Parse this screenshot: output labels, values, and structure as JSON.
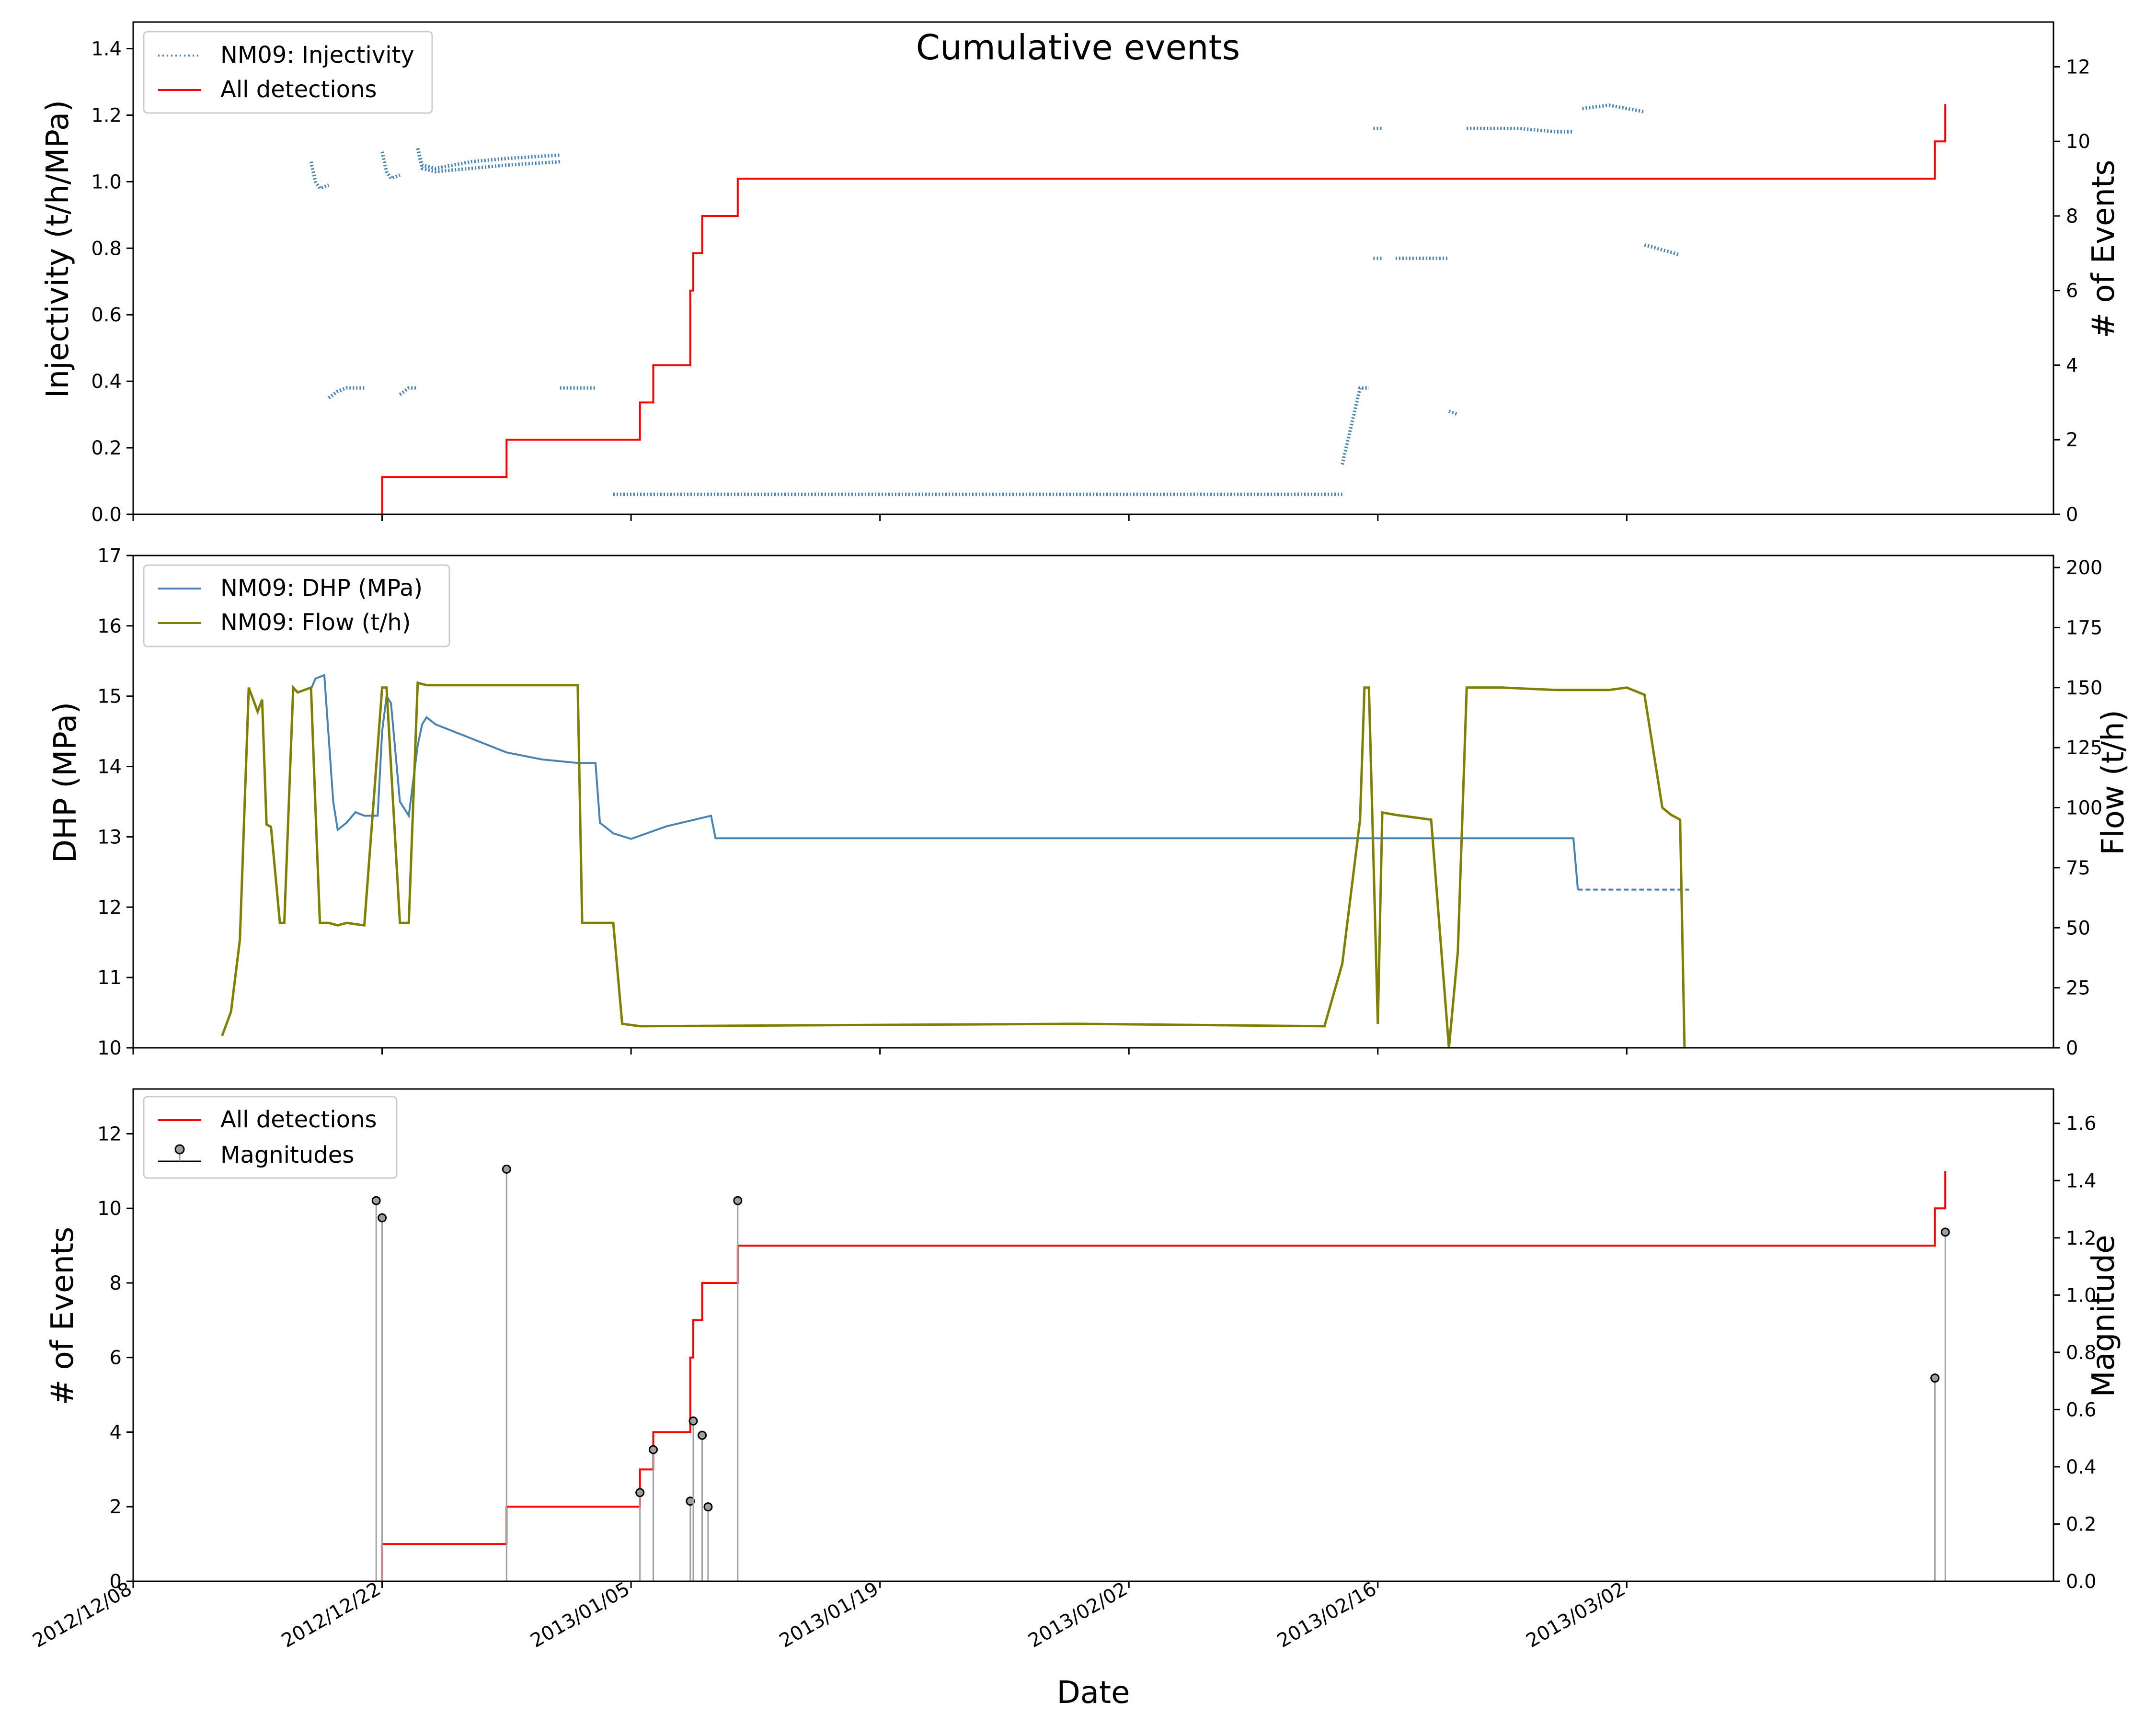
{
  "figure": {
    "title": "Cumulative events",
    "xlabel": "Date",
    "x_tick_labels": [
      "2012/12/08",
      "2012/12/22",
      "2013/01/05",
      "2013/01/19",
      "2013/02/02",
      "2013/02/16",
      "2013/03/02"
    ]
  },
  "colors": {
    "injectivity": "#4682b4",
    "detections": "#ff0000",
    "dhp": "#4682b4",
    "flow": "#808000",
    "stem": "#a0a0a0"
  },
  "chart_data": [
    {
      "type": "scatter",
      "xlabel": "",
      "ylabel": "Injectivity (t/h/MPa)",
      "ylim": [
        0,
        1.48
      ],
      "y_ticks": [
        "0.0",
        "0.2",
        "0.4",
        "0.6",
        "0.8",
        "1.0",
        "1.2",
        "1.4"
      ],
      "y2label": "# of Events",
      "y2lim": [
        0,
        13.2
      ],
      "y2_ticks": [
        "0",
        "2",
        "4",
        "6",
        "8",
        "10",
        "12"
      ],
      "legend_position": "top-left",
      "series": [
        {
          "name": "NM09: Injectivity",
          "axis": "left",
          "style": "dots",
          "segments": [
            [
              [
                "2012-12-18 00:00",
                1.06
              ],
              [
                "2012-12-18 06:00",
                1.0
              ],
              [
                "2012-12-18 12:00",
                0.98
              ],
              [
                "2012-12-19 00:00",
                0.99
              ]
            ],
            [
              [
                "2012-12-19 00:00",
                0.35
              ],
              [
                "2012-12-19 12:00",
                0.37
              ],
              [
                "2012-12-20 00:00",
                0.38
              ],
              [
                "2012-12-21 00:00",
                0.38
              ]
            ],
            [
              [
                "2012-12-22 00:00",
                1.09
              ],
              [
                "2012-12-22 06:00",
                1.03
              ],
              [
                "2012-12-22 12:00",
                1.01
              ],
              [
                "2012-12-23 00:00",
                1.02
              ]
            ],
            [
              [
                "2012-12-23 00:00",
                0.36
              ],
              [
                "2012-12-23 12:00",
                0.38
              ],
              [
                "2012-12-24 00:00",
                0.38
              ]
            ],
            [
              [
                "2012-12-24 00:00",
                1.1
              ],
              [
                "2012-12-24 06:00",
                1.04
              ],
              [
                "2012-12-25 00:00",
                1.03
              ],
              [
                "2012-12-27 00:00",
                1.04
              ],
              [
                "2012-12-29 00:00",
                1.05
              ],
              [
                "2013-01-01 00:00",
                1.06
              ]
            ],
            [
              [
                "2012-12-24 00:00",
                1.1
              ],
              [
                "2012-12-24 06:00",
                1.05
              ],
              [
                "2012-12-25 00:00",
                1.04
              ],
              [
                "2012-12-27 00:00",
                1.06
              ],
              [
                "2012-12-29 00:00",
                1.07
              ],
              [
                "2013-01-01 00:00",
                1.08
              ]
            ],
            [
              [
                "2013-01-01 00:00",
                0.38
              ],
              [
                "2013-01-03 00:00",
                0.38
              ]
            ],
            [
              [
                "2013-01-04 00:00",
                0.06
              ],
              [
                "2013-02-14 00:00",
                0.06
              ]
            ],
            [
              [
                "2013-02-14 00:00",
                0.15
              ],
              [
                "2013-02-15 00:00",
                0.38
              ],
              [
                "2013-02-15 12:00",
                0.38
              ]
            ],
            [
              [
                "2013-02-15 18:00",
                0.77
              ],
              [
                "2013-02-16 06:00",
                0.77
              ]
            ],
            [
              [
                "2013-02-15 18:00",
                1.16
              ],
              [
                "2013-02-16 06:00",
                1.16
              ]
            ],
            [
              [
                "2013-02-17 00:00",
                0.77
              ],
              [
                "2013-02-20 00:00",
                0.77
              ]
            ],
            [
              [
                "2013-02-20 00:00",
                0.31
              ],
              [
                "2013-02-20 12:00",
                0.3
              ]
            ],
            [
              [
                "2013-02-21 00:00",
                1.16
              ],
              [
                "2013-02-24 00:00",
                1.16
              ],
              [
                "2013-02-26 00:00",
                1.15
              ],
              [
                "2013-02-27 00:00",
                1.15
              ]
            ],
            [
              [
                "2013-02-27 12:00",
                1.22
              ],
              [
                "2013-03-01 00:00",
                1.23
              ],
              [
                "2013-03-03 00:00",
                1.21
              ]
            ],
            [
              [
                "2013-03-03 00:00",
                0.81
              ],
              [
                "2013-03-05 00:00",
                0.78
              ]
            ]
          ]
        },
        {
          "name": "All detections",
          "axis": "right",
          "style": "step",
          "x": [
            "2012-12-22 00:00",
            "2012-12-29 00:00",
            "2013-01-05 12:00",
            "2013-01-06 06:00",
            "2013-01-08 08:00",
            "2013-01-08 12:00",
            "2013-01-09 00:00",
            "2013-01-11 00:00",
            "2013-03-19 08:00",
            "2013-03-19 22:00"
          ],
          "y": [
            1,
            2,
            3,
            4,
            6,
            7,
            8,
            9,
            10,
            11
          ]
        }
      ]
    },
    {
      "type": "line",
      "xlabel": "",
      "ylabel": "DHP (MPa)",
      "ylim": [
        10,
        17
      ],
      "y_ticks": [
        "10",
        "11",
        "12",
        "13",
        "14",
        "15",
        "16",
        "17"
      ],
      "y2label": "Flow (t/h)",
      "y2lim": [
        0,
        205
      ],
      "y2_ticks": [
        "0",
        "25",
        "50",
        "75",
        "100",
        "125",
        "150",
        "175",
        "200"
      ],
      "legend_position": "top-left",
      "series": [
        {
          "name": "NM09: DHP (MPa)",
          "axis": "left",
          "x": [
            "2012-12-18 00:00",
            "2012-12-18 06:00",
            "2012-12-18 18:00",
            "2012-12-19 06:00",
            "2012-12-19 12:00",
            "2012-12-20 00:00",
            "2012-12-20 12:00",
            "2012-12-21 00:00",
            "2012-12-21 18:00",
            "2012-12-22 00:00",
            "2012-12-22 06:00",
            "2012-12-22 12:00",
            "2012-12-23 00:00",
            "2012-12-23 12:00",
            "2012-12-24 00:00",
            "2012-12-24 06:00",
            "2012-12-24 12:00",
            "2012-12-25 00:00",
            "2012-12-27 00:00",
            "2012-12-29 00:00",
            "2012-12-31 00:00",
            "2013-01-02 00:00",
            "2013-01-03 00:00",
            "2013-01-03 06:00",
            "2013-01-04 00:00",
            "2013-01-05 00:00",
            "2013-01-07 00:00",
            "2013-01-09 12:00",
            "2013-01-09 18:00",
            "2013-01-20 00:00",
            "2013-02-10 00:00",
            "2013-02-27 00:00",
            "2013-02-27 06:00"
          ],
          "y": [
            15.1,
            15.25,
            15.3,
            13.5,
            13.1,
            13.2,
            13.35,
            13.3,
            13.3,
            14.5,
            15.0,
            14.9,
            13.5,
            13.3,
            14.3,
            14.6,
            14.7,
            14.6,
            14.4,
            14.2,
            14.1,
            14.05,
            14.05,
            13.2,
            13.05,
            12.97,
            13.15,
            13.3,
            12.98,
            12.98,
            12.98,
            12.98,
            12.25
          ]
        },
        {
          "name": "",
          "axis": "left",
          "style": "dashed",
          "x": [
            "2013-02-27 06:00",
            "2013-03-05 12:00"
          ],
          "y": [
            12.25,
            12.25
          ]
        },
        {
          "name": "NM09: Flow (t/h)",
          "axis": "right",
          "x": [
            "2012-12-13 00:00",
            "2012-12-13 12:00",
            "2012-12-14 00:00",
            "2012-12-14 12:00",
            "2012-12-15 00:00",
            "2012-12-15 06:00",
            "2012-12-15 12:00",
            "2012-12-15 18:00",
            "2012-12-16 06:00",
            "2012-12-16 12:00",
            "2012-12-17 00:00",
            "2012-12-17 06:00",
            "2012-12-18 00:00",
            "2012-12-18 06:00",
            "2012-12-18 12:00",
            "2012-12-19 00:00",
            "2012-12-19 12:00",
            "2012-12-20 00:00",
            "2012-12-21 00:00",
            "2012-12-22 00:00",
            "2012-12-22 06:00",
            "2012-12-23 00:00",
            "2012-12-23 12:00",
            "2012-12-24 00:00",
            "2012-12-24 12:00",
            "2013-01-02 00:00",
            "2013-01-02 06:00",
            "2013-01-04 00:00",
            "2013-01-04 12:00",
            "2013-01-05 12:00",
            "2013-01-30 00:00",
            "2013-02-13 00:00",
            "2013-02-14 00:00",
            "2013-02-15 00:00",
            "2013-02-15 06:00",
            "2013-02-15 12:00",
            "2013-02-16 00:00",
            "2013-02-16 06:00",
            "2013-02-17 00:00",
            "2013-02-19 00:00",
            "2013-02-20 00:00",
            "2013-02-20 12:00",
            "2013-02-21 00:00",
            "2013-02-23 00:00",
            "2013-02-26 00:00",
            "2013-03-01 00:00",
            "2013-03-02 00:00",
            "2013-03-03 00:00",
            "2013-03-04 00:00",
            "2013-03-04 12:00",
            "2013-03-05 00:00",
            "2013-03-05 06:00"
          ],
          "y": [
            5,
            15,
            45,
            150,
            140,
            145,
            93,
            92,
            52,
            52,
            150,
            148,
            150,
            100,
            52,
            52,
            51,
            52,
            51,
            150,
            150,
            52,
            52,
            152,
            151,
            151,
            52,
            52,
            10,
            9,
            10,
            9,
            35,
            95,
            150,
            150,
            10,
            98,
            97,
            95,
            0,
            40,
            150,
            150,
            149,
            149,
            150,
            147,
            100,
            97,
            95,
            0
          ]
        }
      ]
    },
    {
      "type": "line",
      "xlabel": "Date",
      "ylabel": "# of Events",
      "ylim": [
        0,
        13.2
      ],
      "y_ticks": [
        "0",
        "2",
        "4",
        "6",
        "8",
        "10",
        "12"
      ],
      "y2label": "Magnitude",
      "y2lim": [
        0,
        1.72
      ],
      "y2_ticks": [
        "0.0",
        "0.2",
        "0.4",
        "0.6",
        "0.8",
        "1.0",
        "1.2",
        "1.4",
        "1.6"
      ],
      "legend_position": "top-left",
      "series": [
        {
          "name": "All detections",
          "axis": "left",
          "style": "step",
          "x": [
            "2012-12-22 00:00",
            "2012-12-29 00:00",
            "2013-01-05 12:00",
            "2013-01-06 06:00",
            "2013-01-08 08:00",
            "2013-01-08 12:00",
            "2013-01-09 00:00",
            "2013-01-11 00:00",
            "2013-03-19 08:00",
            "2013-03-19 22:00"
          ],
          "y": [
            1,
            2,
            3,
            4,
            6,
            7,
            8,
            9,
            10,
            11
          ]
        },
        {
          "name": "Magnitudes",
          "axis": "right",
          "style": "stem",
          "x": [
            "2012-12-21 16:00",
            "2012-12-22 00:00",
            "2012-12-29 00:00",
            "2013-01-05 12:00",
            "2013-01-06 06:00",
            "2013-01-08 08:00",
            "2013-01-08 12:00",
            "2013-01-09 00:00",
            "2013-01-09 08:00",
            "2013-01-11 00:00",
            "2013-03-19 08:00",
            "2013-03-19 22:00"
          ],
          "y": [
            1.33,
            1.27,
            1.44,
            0.31,
            0.46,
            0.28,
            0.56,
            0.51,
            0.26,
            1.33,
            0.71,
            1.22
          ]
        }
      ]
    }
  ]
}
